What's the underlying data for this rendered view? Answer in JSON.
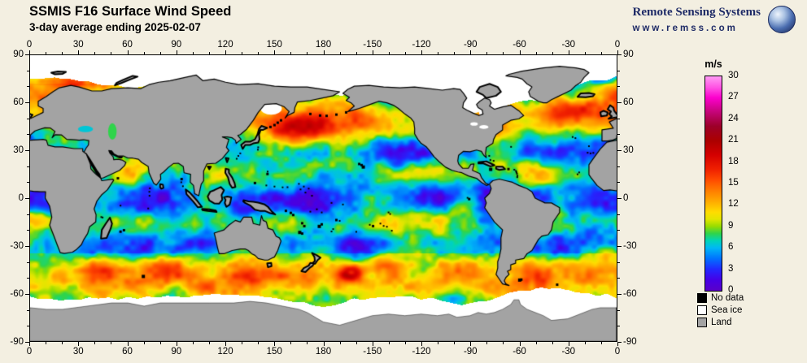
{
  "header": {
    "title": "SSMIS F16 Surface Wind Speed",
    "subtitle": "3-day average ending 2025-02-07"
  },
  "branding": {
    "name": "Remote Sensing Systems",
    "url": "www.remss.com"
  },
  "map_axes": {
    "lon_tick_labels": [
      "0",
      "30",
      "60",
      "90",
      "120",
      "150",
      "180",
      "-150",
      "-120",
      "-90",
      "-60",
      "-30",
      "0"
    ],
    "lat_tick_labels": [
      "90",
      "60",
      "30",
      "0",
      "-30",
      "-60",
      "-90"
    ]
  },
  "colorbar": {
    "unit": "m/s",
    "min": 0,
    "max": 30,
    "tick_labels": [
      "30",
      "27",
      "24",
      "21",
      "18",
      "15",
      "12",
      "9",
      "6",
      "3",
      "0"
    ],
    "stops": [
      [
        0,
        "#5a00c8"
      ],
      [
        1.5,
        "#4600e6"
      ],
      [
        3,
        "#2228ff"
      ],
      [
        4.5,
        "#0072ff"
      ],
      [
        6,
        "#00b8f5"
      ],
      [
        7,
        "#00d4b8"
      ],
      [
        8,
        "#2fd44b"
      ],
      [
        9,
        "#97dc00"
      ],
      [
        10,
        "#e2e600"
      ],
      [
        11,
        "#ffdc00"
      ],
      [
        12.5,
        "#ffaa00"
      ],
      [
        14,
        "#ff7d00"
      ],
      [
        15.5,
        "#ff4b00"
      ],
      [
        17,
        "#f02000"
      ],
      [
        19,
        "#d40000"
      ],
      [
        21,
        "#ab0000"
      ],
      [
        23,
        "#9c0028"
      ],
      [
        25,
        "#c40478"
      ],
      [
        27,
        "#fb00cd"
      ],
      [
        28.5,
        "#ff55e4"
      ],
      [
        30,
        "#ff9cf5"
      ]
    ]
  },
  "legend": {
    "items": [
      {
        "label": "No data",
        "color": "#000000"
      },
      {
        "label": "Sea ice",
        "color": "#ffffff"
      },
      {
        "label": "Land",
        "color": "#a3a3a3"
      }
    ]
  },
  "colors": {
    "background": "#f3efe1",
    "land": "#a3a3a3",
    "brand_navy": "#1e2a66",
    "frame": "#000000"
  },
  "chart_data": {
    "type": "heatmap",
    "title": "SSMIS F16 Surface Wind Speed",
    "subtitle": "3-day average ending 2025-02-07",
    "units": "m/s",
    "scale_range": [
      0,
      30
    ],
    "scale_ticks": [
      30,
      27,
      24,
      21,
      18,
      15,
      12,
      9,
      6,
      3,
      0
    ],
    "x_ticks_longitude": [
      0,
      30,
      60,
      90,
      120,
      150,
      180,
      -150,
      -120,
      -90,
      -60,
      -30,
      0
    ],
    "y_ticks_latitude": [
      90,
      60,
      30,
      0,
      -30,
      -60,
      -90
    ],
    "legend_classes": [
      "No data",
      "Sea ice",
      "Land"
    ]
  }
}
